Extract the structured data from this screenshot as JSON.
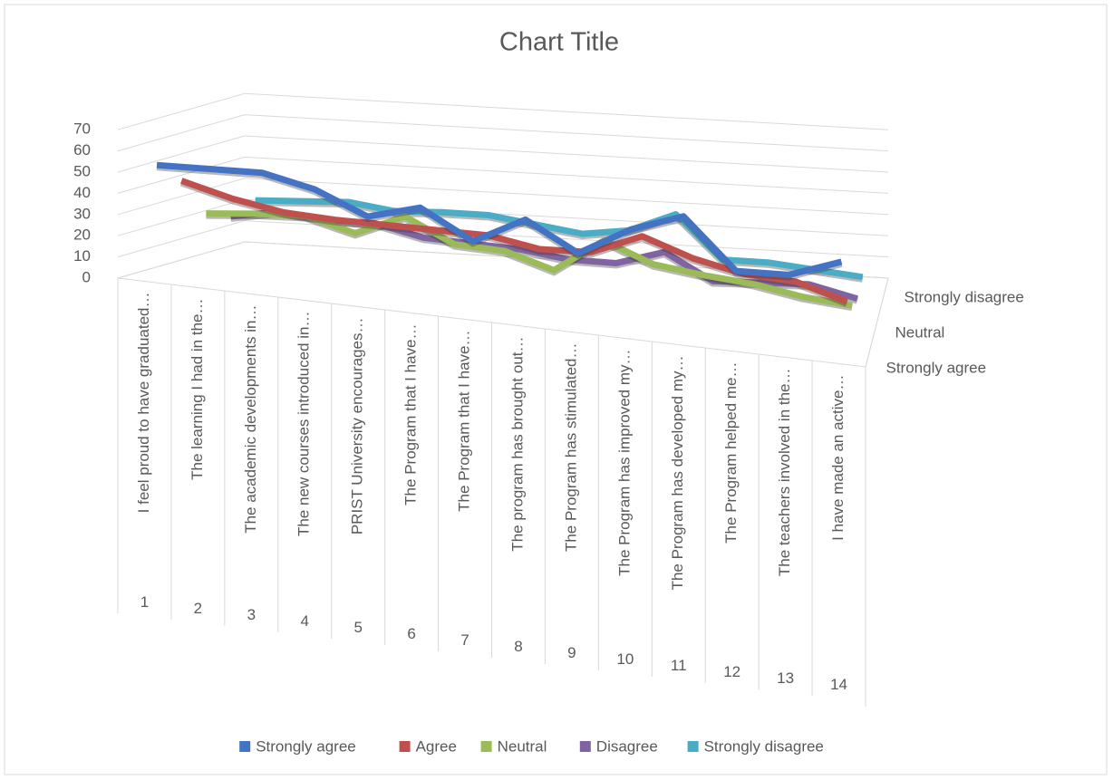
{
  "chart_data": {
    "type": "line3d",
    "title": "Chart Title",
    "categories": [
      "I feel proud to have graduated…",
      "The learning I had in the…",
      "The academic developments in…",
      "The new courses introduced in…",
      "PRIST University encourages…",
      "The Program that I have…",
      "The Program that I have…",
      "The program has brought out…",
      "The Program has stimulated…",
      "The Program has improved my…",
      "The Program has developed my…",
      "The Program helped me…",
      "The teachers involved in the…",
      "I have made an active…"
    ],
    "category_numbers": [
      "1",
      "2",
      "3",
      "4",
      "5",
      "6",
      "7",
      "8",
      "9",
      "10",
      "11",
      "12",
      "13",
      "14"
    ],
    "series": [
      {
        "name": "Strongly agree",
        "color": "#4472c4",
        "values": [
          53,
          54,
          55,
          50,
          40,
          47,
          34,
          47,
          34,
          48,
          57,
          34,
          35,
          44
        ]
      },
      {
        "name": "Agree",
        "color": "#c0504d",
        "values": [
          42,
          36,
          32,
          31,
          31,
          31,
          31,
          27,
          28,
          38,
          30,
          25,
          24,
          17
        ]
      },
      {
        "name": "Neutral",
        "color": "#9bbb59",
        "values": [
          23,
          25,
          26,
          20,
          30,
          19,
          18,
          11,
          27,
          18,
          15,
          13,
          9,
          7
        ]
      },
      {
        "name": "Disagree",
        "color": "#8064a2",
        "values": [
          18,
          22,
          20,
          20,
          15,
          14,
          13,
          10,
          10,
          17,
          5,
          6,
          7,
          2
        ]
      },
      {
        "name": "Strongly disagree",
        "color": "#4bacc6",
        "values": [
          22,
          23,
          24,
          21,
          22,
          22,
          19,
          16,
          19,
          28,
          8,
          8,
          6,
          4
        ]
      }
    ],
    "ylim": [
      0,
      70
    ],
    "yticks": [
      0,
      10,
      20,
      30,
      40,
      50,
      60,
      70
    ],
    "grid": true,
    "depth_label_series": [
      4,
      2,
      0
    ],
    "legend": "bottom"
  }
}
